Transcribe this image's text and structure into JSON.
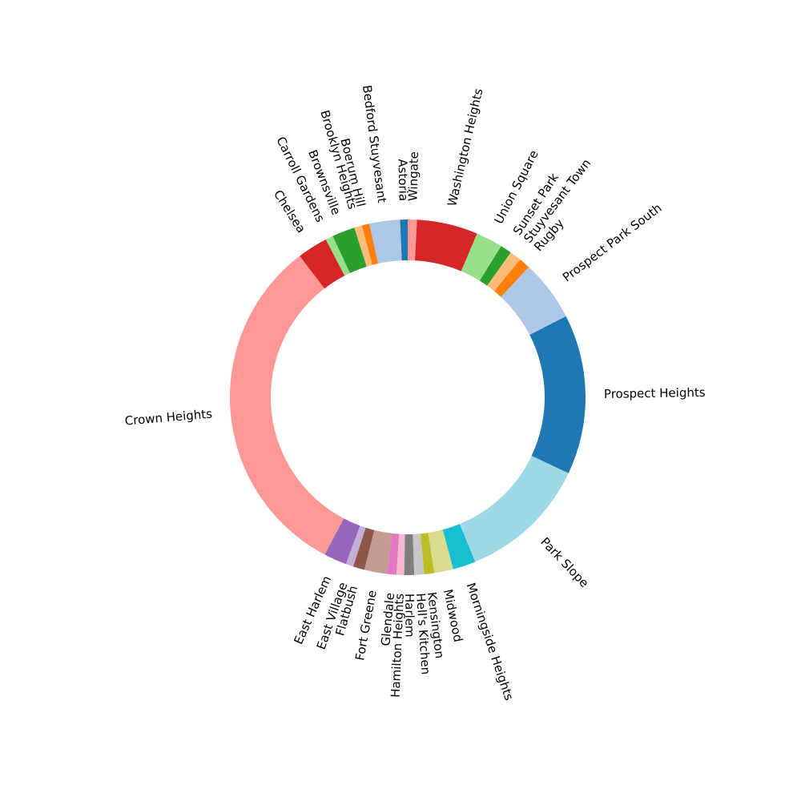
{
  "chart_data": {
    "type": "pie",
    "variant": "donut",
    "start_angle_deg": 90,
    "direction": "counterclockwise",
    "grid": false,
    "legend": "none",
    "slices": [
      {
        "label": "Astoria",
        "value": 1,
        "color": "#1f77b4"
      },
      {
        "label": "Bedford Stuyvesant",
        "value": 4,
        "color": "#aec7e8"
      },
      {
        "label": "Boerum Hill",
        "value": 1,
        "color": "#ff7f0e"
      },
      {
        "label": "Brooklyn Heights",
        "value": 1,
        "color": "#ffbb78"
      },
      {
        "label": "Brownsville",
        "value": 3,
        "color": "#2ca02c"
      },
      {
        "label": "Carroll Gardens",
        "value": 1,
        "color": "#98df8a"
      },
      {
        "label": "Chelsea",
        "value": 4,
        "color": "#d62728"
      },
      {
        "label": "Crown Heights",
        "value": 46,
        "color": "#ff9896"
      },
      {
        "label": "East Harlem",
        "value": 3,
        "color": "#9467bd"
      },
      {
        "label": "East Village",
        "value": 1,
        "color": "#c5b0d5"
      },
      {
        "label": "Flatbush",
        "value": 1.5,
        "color": "#8c564b"
      },
      {
        "label": "Fort Greene",
        "value": 3,
        "color": "#c49c94"
      },
      {
        "label": "Glendale",
        "value": 1.2,
        "color": "#e377c2"
      },
      {
        "label": "Hamilton Heights",
        "value": 1,
        "color": "#f7b6d2"
      },
      {
        "label": "Harlem",
        "value": 1.3,
        "color": "#7f7f7f"
      },
      {
        "label": "Hell's Kitchen",
        "value": 1.3,
        "color": "#c7c7c7"
      },
      {
        "label": "Kensington",
        "value": 1.3,
        "color": "#bcbd22"
      },
      {
        "label": "Midwood",
        "value": 2.5,
        "color": "#dbdb8d"
      },
      {
        "label": "Morningside Heights",
        "value": 3,
        "color": "#17becf"
      },
      {
        "label": "Park Slope",
        "value": 17,
        "color": "#9edae5"
      },
      {
        "label": "Prospect Heights",
        "value": 21,
        "color": "#1f77b4"
      },
      {
        "label": "Prospect Park South",
        "value": 8,
        "color": "#aec7e8"
      },
      {
        "label": "Rugby",
        "value": 1.5,
        "color": "#ff7f0e"
      },
      {
        "label": "Stuyvesant Town",
        "value": 1.5,
        "color": "#ffbb78"
      },
      {
        "label": "Sunset Park",
        "value": 1.5,
        "color": "#2ca02c"
      },
      {
        "label": "Union Square",
        "value": 3.5,
        "color": "#98df8a"
      },
      {
        "label": "Washington Heights",
        "value": 8,
        "color": "#d62728"
      },
      {
        "label": "Wingate",
        "value": 1.2,
        "color": "#ff9896"
      }
    ]
  }
}
